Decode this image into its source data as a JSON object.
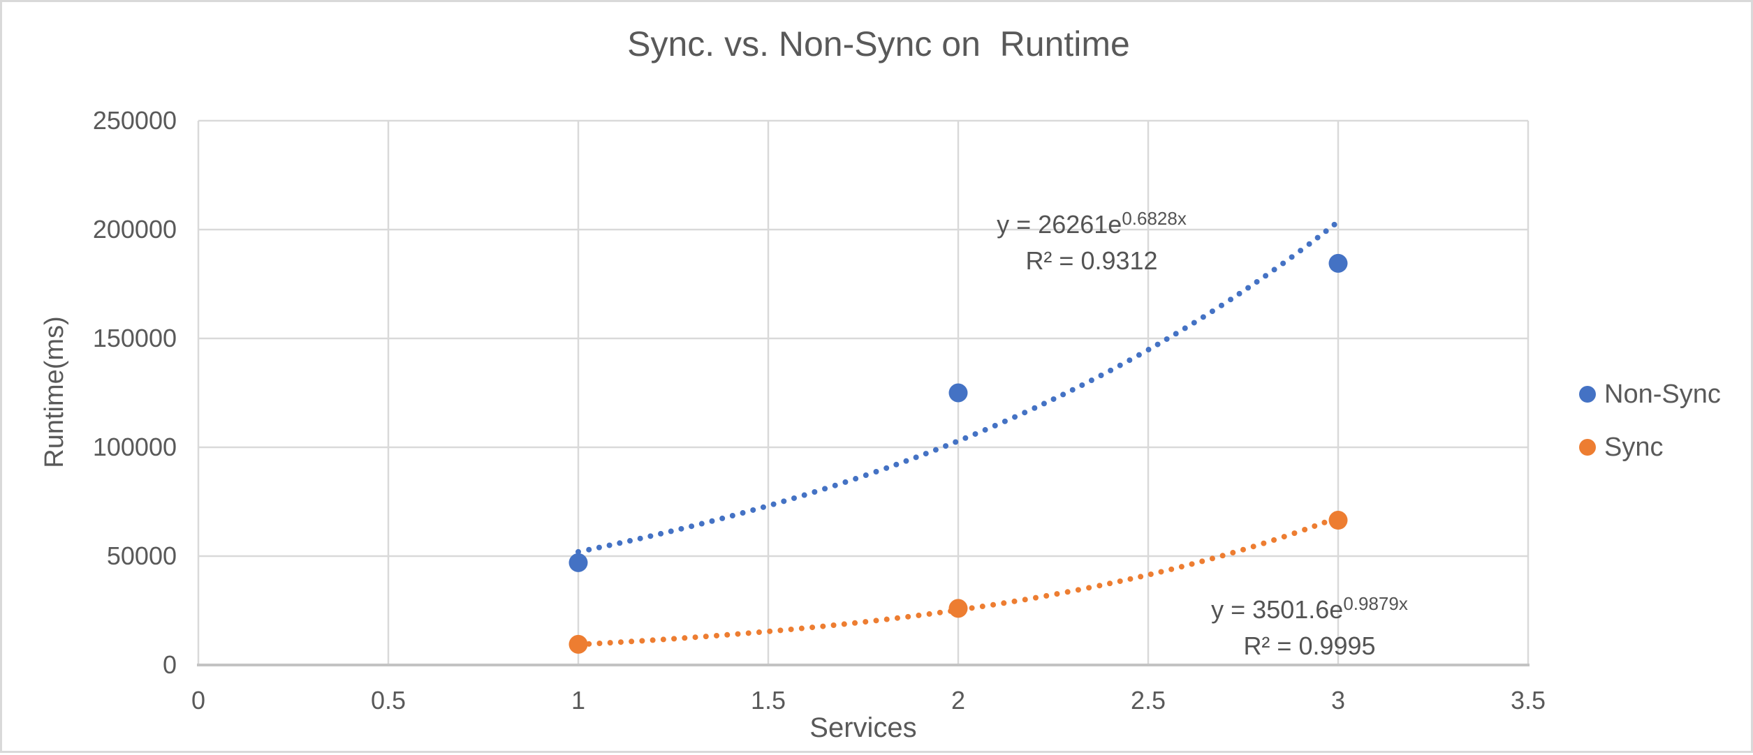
{
  "chart_data": {
    "type": "scatter",
    "title": "Sync. vs. Non-Sync on  Runtime",
    "xlabel": "Services",
    "ylabel": "Runtime(ms)",
    "xlim": [
      0,
      3.5
    ],
    "ylim": [
      0,
      250000
    ],
    "x_ticks": [
      0,
      0.5,
      1,
      1.5,
      2,
      2.5,
      3,
      3.5
    ],
    "x_tick_labels": [
      "0",
      "0.5",
      "1",
      "1.5",
      "2",
      "2.5",
      "3",
      "3.5"
    ],
    "y_ticks": [
      0,
      50000,
      100000,
      150000,
      200000,
      250000
    ],
    "y_tick_labels": [
      "0",
      "50000",
      "100000",
      "150000",
      "200000",
      "250000"
    ],
    "grid": true,
    "legend_position": "right",
    "series": [
      {
        "name": "Non-Sync",
        "color": "#4472C4",
        "marker": "circle",
        "points": [
          {
            "x": 1,
            "y": 47000
          },
          {
            "x": 2,
            "y": 125000
          },
          {
            "x": 3,
            "y": 184500
          }
        ],
        "trendline": {
          "type": "exponential",
          "a": 26261,
          "b": 0.6828,
          "equation_base": "y = 26261e",
          "equation_exponent": "0.6828x",
          "r_squared_label": "R² = 0.9312",
          "line_style": "dotted",
          "x_range": [
            1,
            3
          ]
        }
      },
      {
        "name": "Sync",
        "color": "#ED7D31",
        "marker": "circle",
        "points": [
          {
            "x": 1,
            "y": 9500
          },
          {
            "x": 2,
            "y": 26000
          },
          {
            "x": 3,
            "y": 66500
          }
        ],
        "trendline": {
          "type": "exponential",
          "a": 3501.6,
          "b": 0.9879,
          "equation_base": "y = 3501.6e",
          "equation_exponent": "0.9879x",
          "r_squared_label": "R² = 0.9995",
          "line_style": "dotted",
          "x_range": [
            1,
            3
          ]
        }
      }
    ]
  },
  "legend": {
    "items": [
      {
        "label": "Non-Sync",
        "color": "#4472C4"
      },
      {
        "label": "Sync",
        "color": "#ED7D31"
      }
    ]
  },
  "style": {
    "text_color": "#595959",
    "gridline_color": "#d9d9d9",
    "axis_line_color": "#c3c3c3",
    "frame_border_color": "#d9d9d9",
    "background": "#ffffff"
  }
}
